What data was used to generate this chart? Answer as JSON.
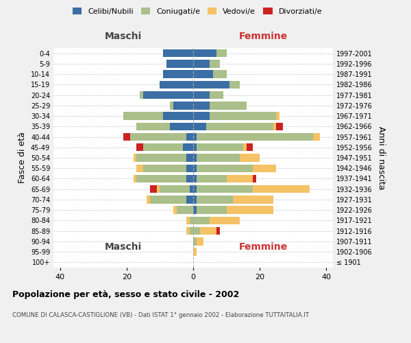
{
  "age_groups": [
    "100+",
    "95-99",
    "90-94",
    "85-89",
    "80-84",
    "75-79",
    "70-74",
    "65-69",
    "60-64",
    "55-59",
    "50-54",
    "45-49",
    "40-44",
    "35-39",
    "30-34",
    "25-29",
    "20-24",
    "15-19",
    "10-14",
    "5-9",
    "0-4"
  ],
  "birth_years": [
    "≤ 1901",
    "1902-1906",
    "1907-1911",
    "1912-1916",
    "1917-1921",
    "1922-1926",
    "1927-1931",
    "1932-1936",
    "1937-1941",
    "1942-1946",
    "1947-1951",
    "1952-1956",
    "1957-1961",
    "1962-1966",
    "1967-1971",
    "1972-1976",
    "1977-1981",
    "1982-1986",
    "1987-1991",
    "1992-1996",
    "1997-2001"
  ],
  "male": {
    "celibi": [
      0,
      0,
      0,
      0,
      0,
      0,
      2,
      1,
      2,
      2,
      2,
      3,
      2,
      7,
      9,
      6,
      15,
      10,
      9,
      8,
      9
    ],
    "coniugati": [
      0,
      0,
      0,
      1,
      1,
      5,
      11,
      9,
      15,
      13,
      15,
      12,
      17,
      10,
      12,
      1,
      1,
      0,
      0,
      0,
      0
    ],
    "vedovi": [
      0,
      0,
      0,
      1,
      1,
      1,
      1,
      1,
      1,
      2,
      1,
      0,
      0,
      0,
      0,
      0,
      0,
      0,
      0,
      0,
      0
    ],
    "divorziati": [
      0,
      0,
      0,
      0,
      0,
      0,
      0,
      2,
      0,
      0,
      0,
      2,
      2,
      0,
      0,
      0,
      0,
      0,
      0,
      0,
      0
    ]
  },
  "female": {
    "nubili": [
      0,
      0,
      0,
      0,
      0,
      1,
      1,
      1,
      1,
      1,
      1,
      1,
      1,
      4,
      5,
      5,
      5,
      11,
      6,
      5,
      7
    ],
    "coniugate": [
      0,
      0,
      1,
      2,
      5,
      9,
      11,
      17,
      9,
      17,
      13,
      14,
      35,
      20,
      20,
      11,
      4,
      3,
      4,
      3,
      3
    ],
    "vedove": [
      0,
      1,
      2,
      5,
      9,
      14,
      12,
      17,
      8,
      7,
      6,
      1,
      2,
      1,
      1,
      0,
      0,
      0,
      0,
      0,
      0
    ],
    "divorziate": [
      0,
      0,
      0,
      1,
      0,
      0,
      0,
      0,
      1,
      0,
      0,
      2,
      0,
      2,
      0,
      0,
      0,
      0,
      0,
      0,
      0
    ]
  },
  "colors": {
    "celibi": "#3A6EA5",
    "coniugati": "#AABF8A",
    "vedovi": "#F5C265",
    "divorziati": "#CC2222"
  },
  "xlim": 42,
  "title": "Popolazione per età, sesso e stato civile - 2002",
  "subtitle": "COMUNE DI CALASCA-CASTIGLIONE (VB) - Dati ISTAT 1° gennaio 2002 - Elaborazione TUTTAITALIA.IT",
  "ylabel_left": "Fasce di età",
  "ylabel_right": "Anni di nascita",
  "xlabel_left": "Maschi",
  "xlabel_right": "Femmine",
  "bg_color": "#f0f0f0",
  "plot_bg": "#ffffff"
}
